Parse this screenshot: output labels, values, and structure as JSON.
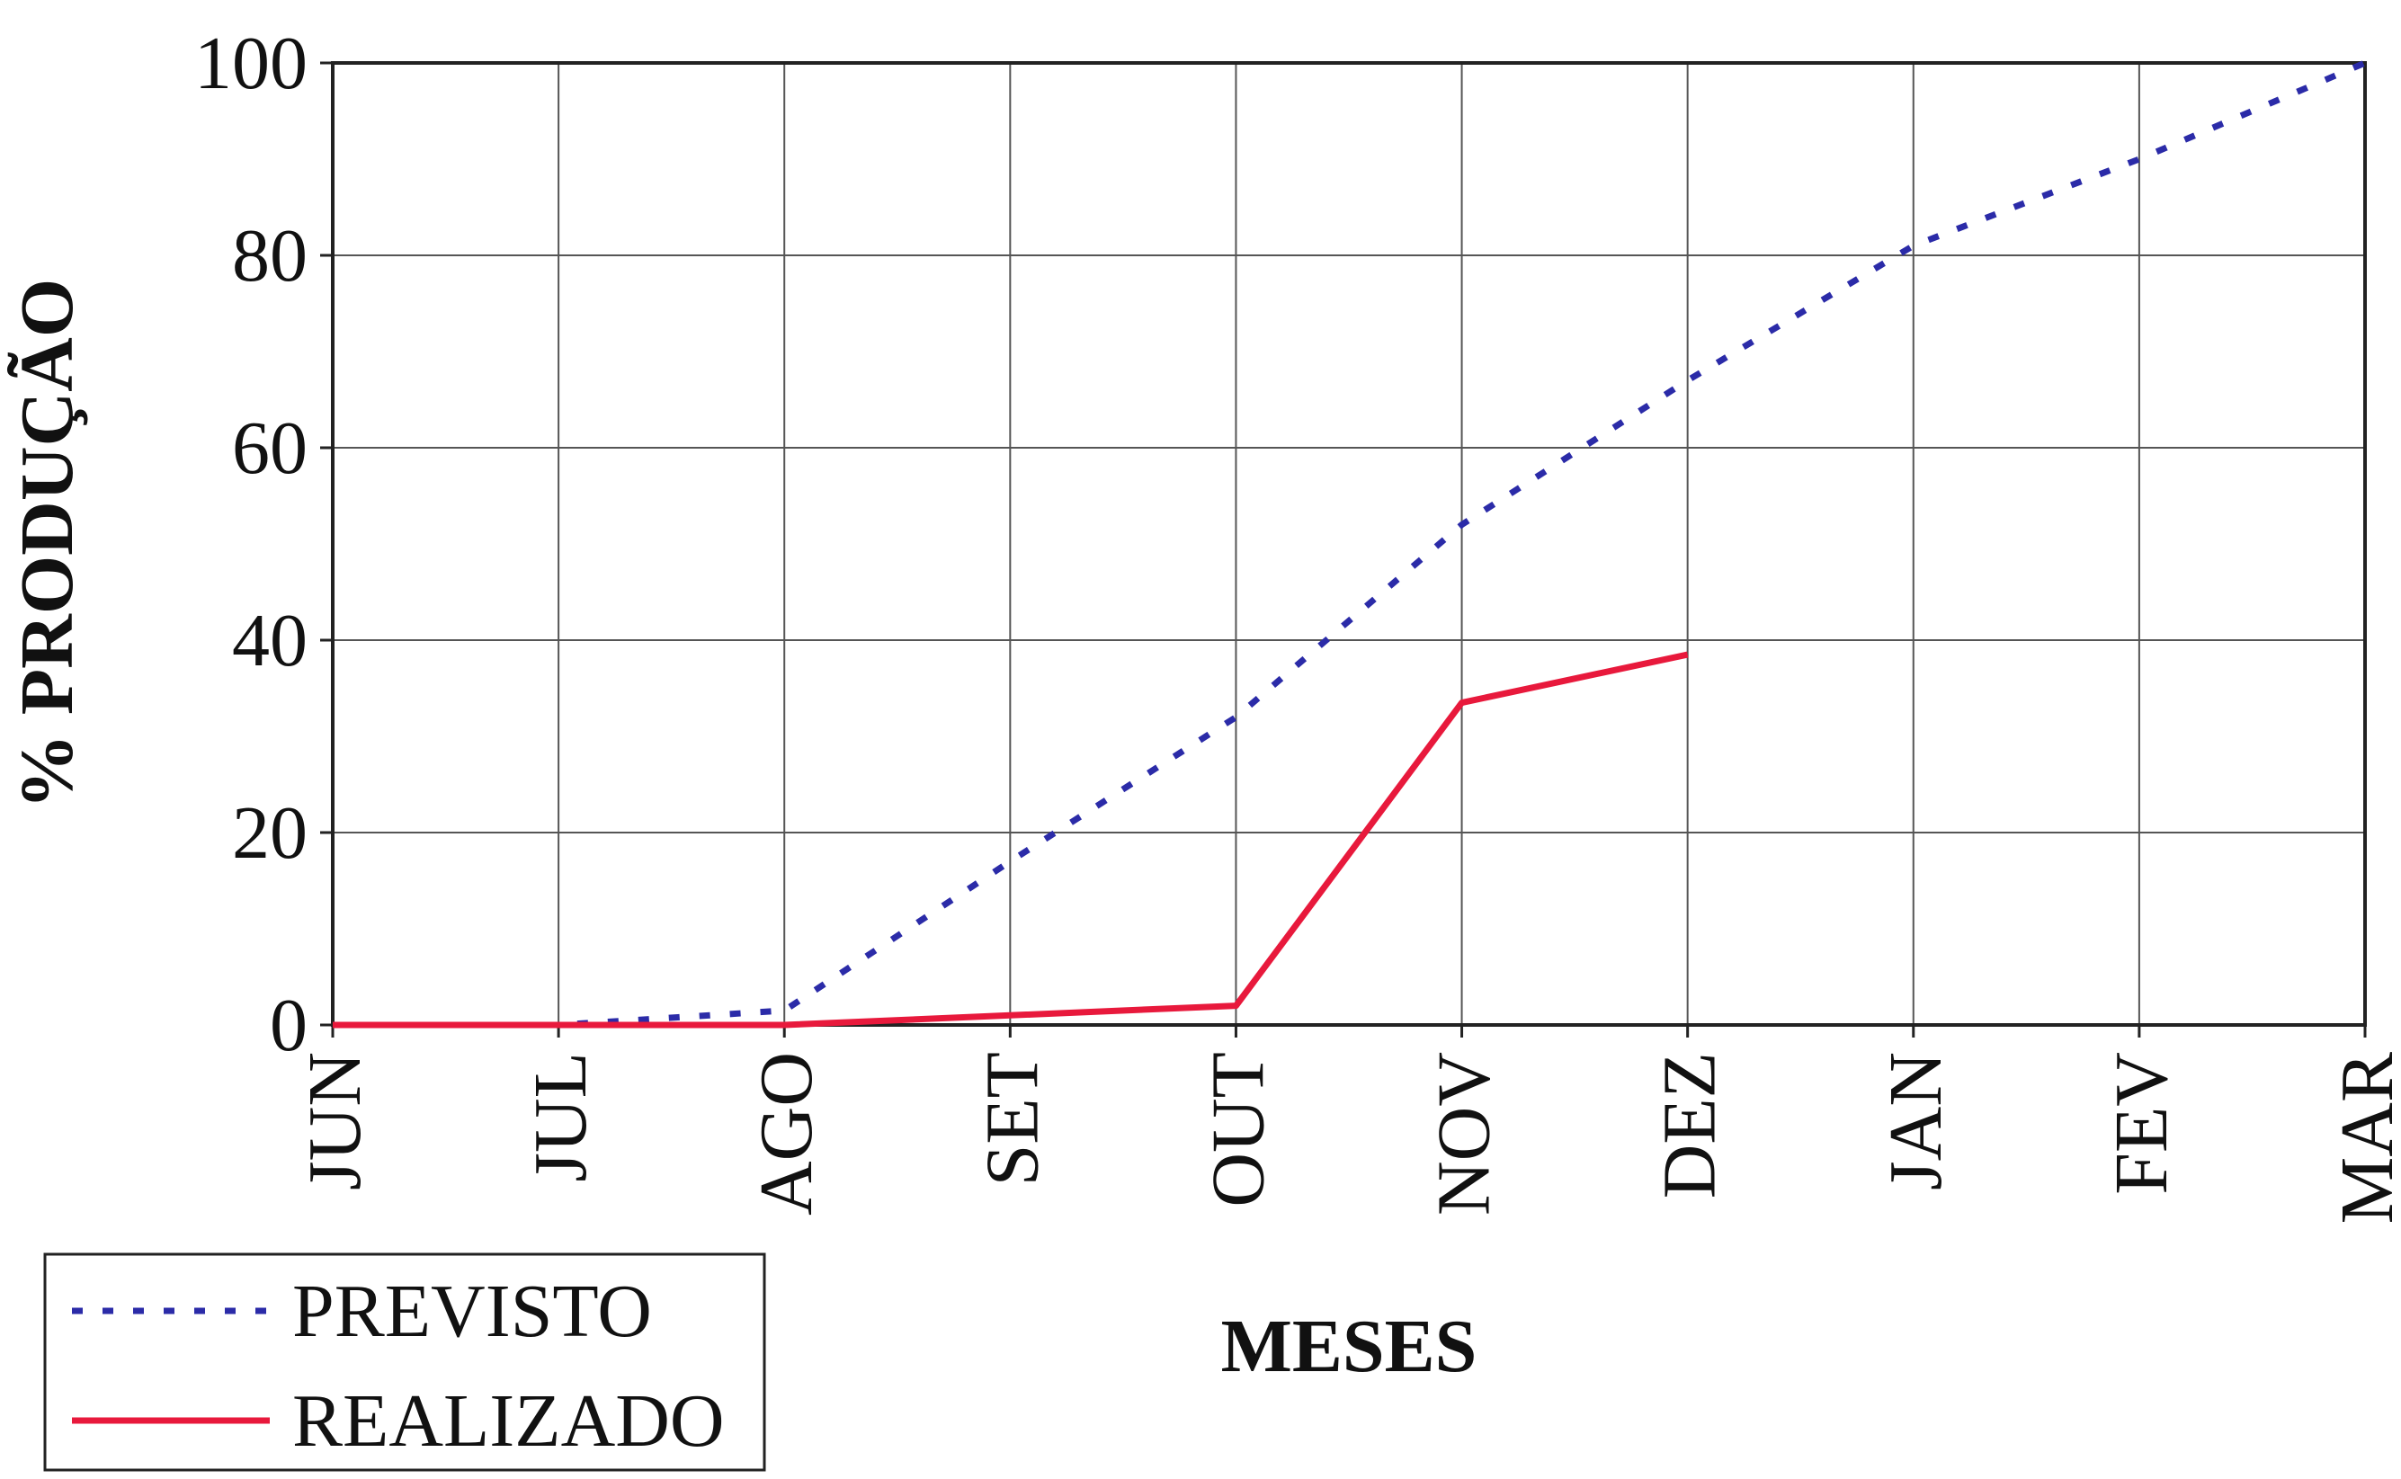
{
  "chart_data": {
    "type": "line",
    "title": "",
    "xlabel": "MESES",
    "ylabel": "% PRODUÇÃO",
    "categories": [
      "JUN",
      "JUL",
      "AGO",
      "SET",
      "OUT",
      "NOV",
      "DEZ",
      "JAN",
      "FEV",
      "MAR"
    ],
    "ylim": [
      0,
      100
    ],
    "yticks": [
      0,
      20,
      40,
      60,
      80,
      100
    ],
    "grid": true,
    "legend_position": "bottom-left",
    "series": [
      {
        "name": "PREVISTO",
        "style": "dotted",
        "color": "#2b2ba8",
        "values": [
          0,
          0,
          1.5,
          17,
          32,
          52,
          67,
          81,
          90,
          100
        ]
      },
      {
        "name": "REALIZADO",
        "style": "solid",
        "color": "#e8193c",
        "values": [
          0,
          0,
          0,
          1,
          2,
          33.5,
          38.5,
          null,
          null,
          null
        ]
      }
    ]
  }
}
